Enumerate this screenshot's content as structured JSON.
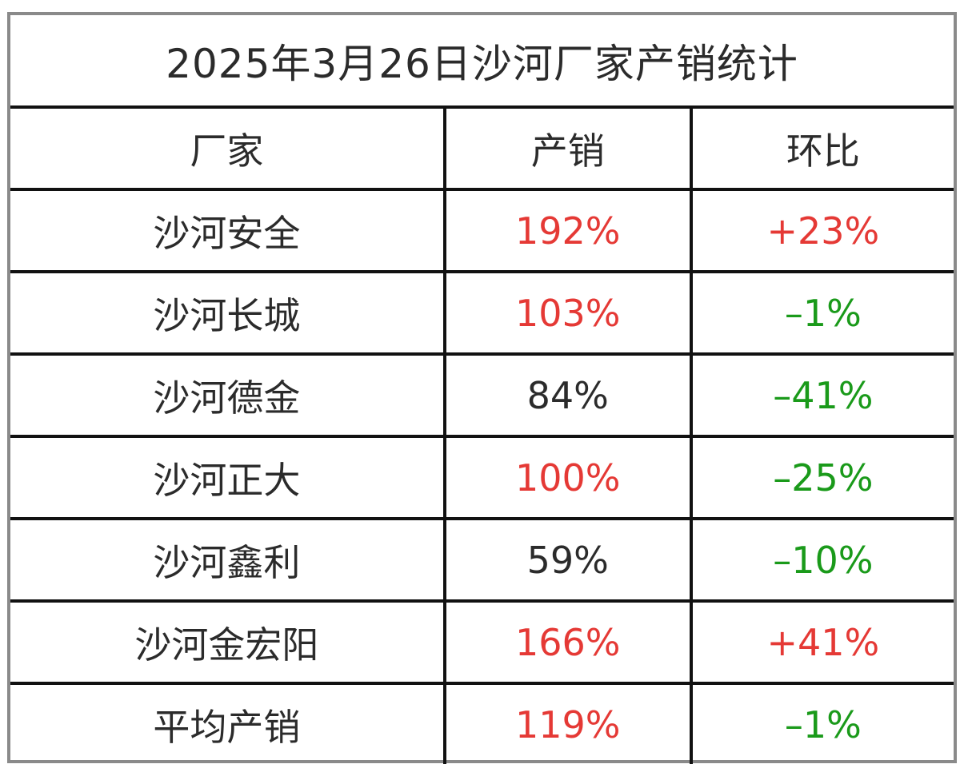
{
  "title": "2025年3月26日沙河厂家产销统计",
  "headers": [
    "厂家",
    "产销",
    "环比"
  ],
  "colors": {
    "positive": "#e53935",
    "negative": "#1a9a1a",
    "neutral": "#2b2b2b"
  },
  "rows": [
    {
      "factory": "沙河安全",
      "output": "192%",
      "output_color": "red",
      "change": "+23%",
      "change_color": "red"
    },
    {
      "factory": "沙河长城",
      "output": "103%",
      "output_color": "red",
      "change": "–1%",
      "change_color": "green"
    },
    {
      "factory": "沙河德金",
      "output": "84%",
      "output_color": "dark",
      "change": "–41%",
      "change_color": "green"
    },
    {
      "factory": "沙河正大",
      "output": "100%",
      "output_color": "red",
      "change": "–25%",
      "change_color": "green"
    },
    {
      "factory": "沙河鑫利",
      "output": "59%",
      "output_color": "dark",
      "change": "–10%",
      "change_color": "green"
    },
    {
      "factory": "沙河金宏阳",
      "output": "166%",
      "output_color": "red",
      "change": "+41%",
      "change_color": "red"
    },
    {
      "factory": "平均产销",
      "output": "119%",
      "output_color": "red",
      "change": "–1%",
      "change_color": "green"
    }
  ]
}
